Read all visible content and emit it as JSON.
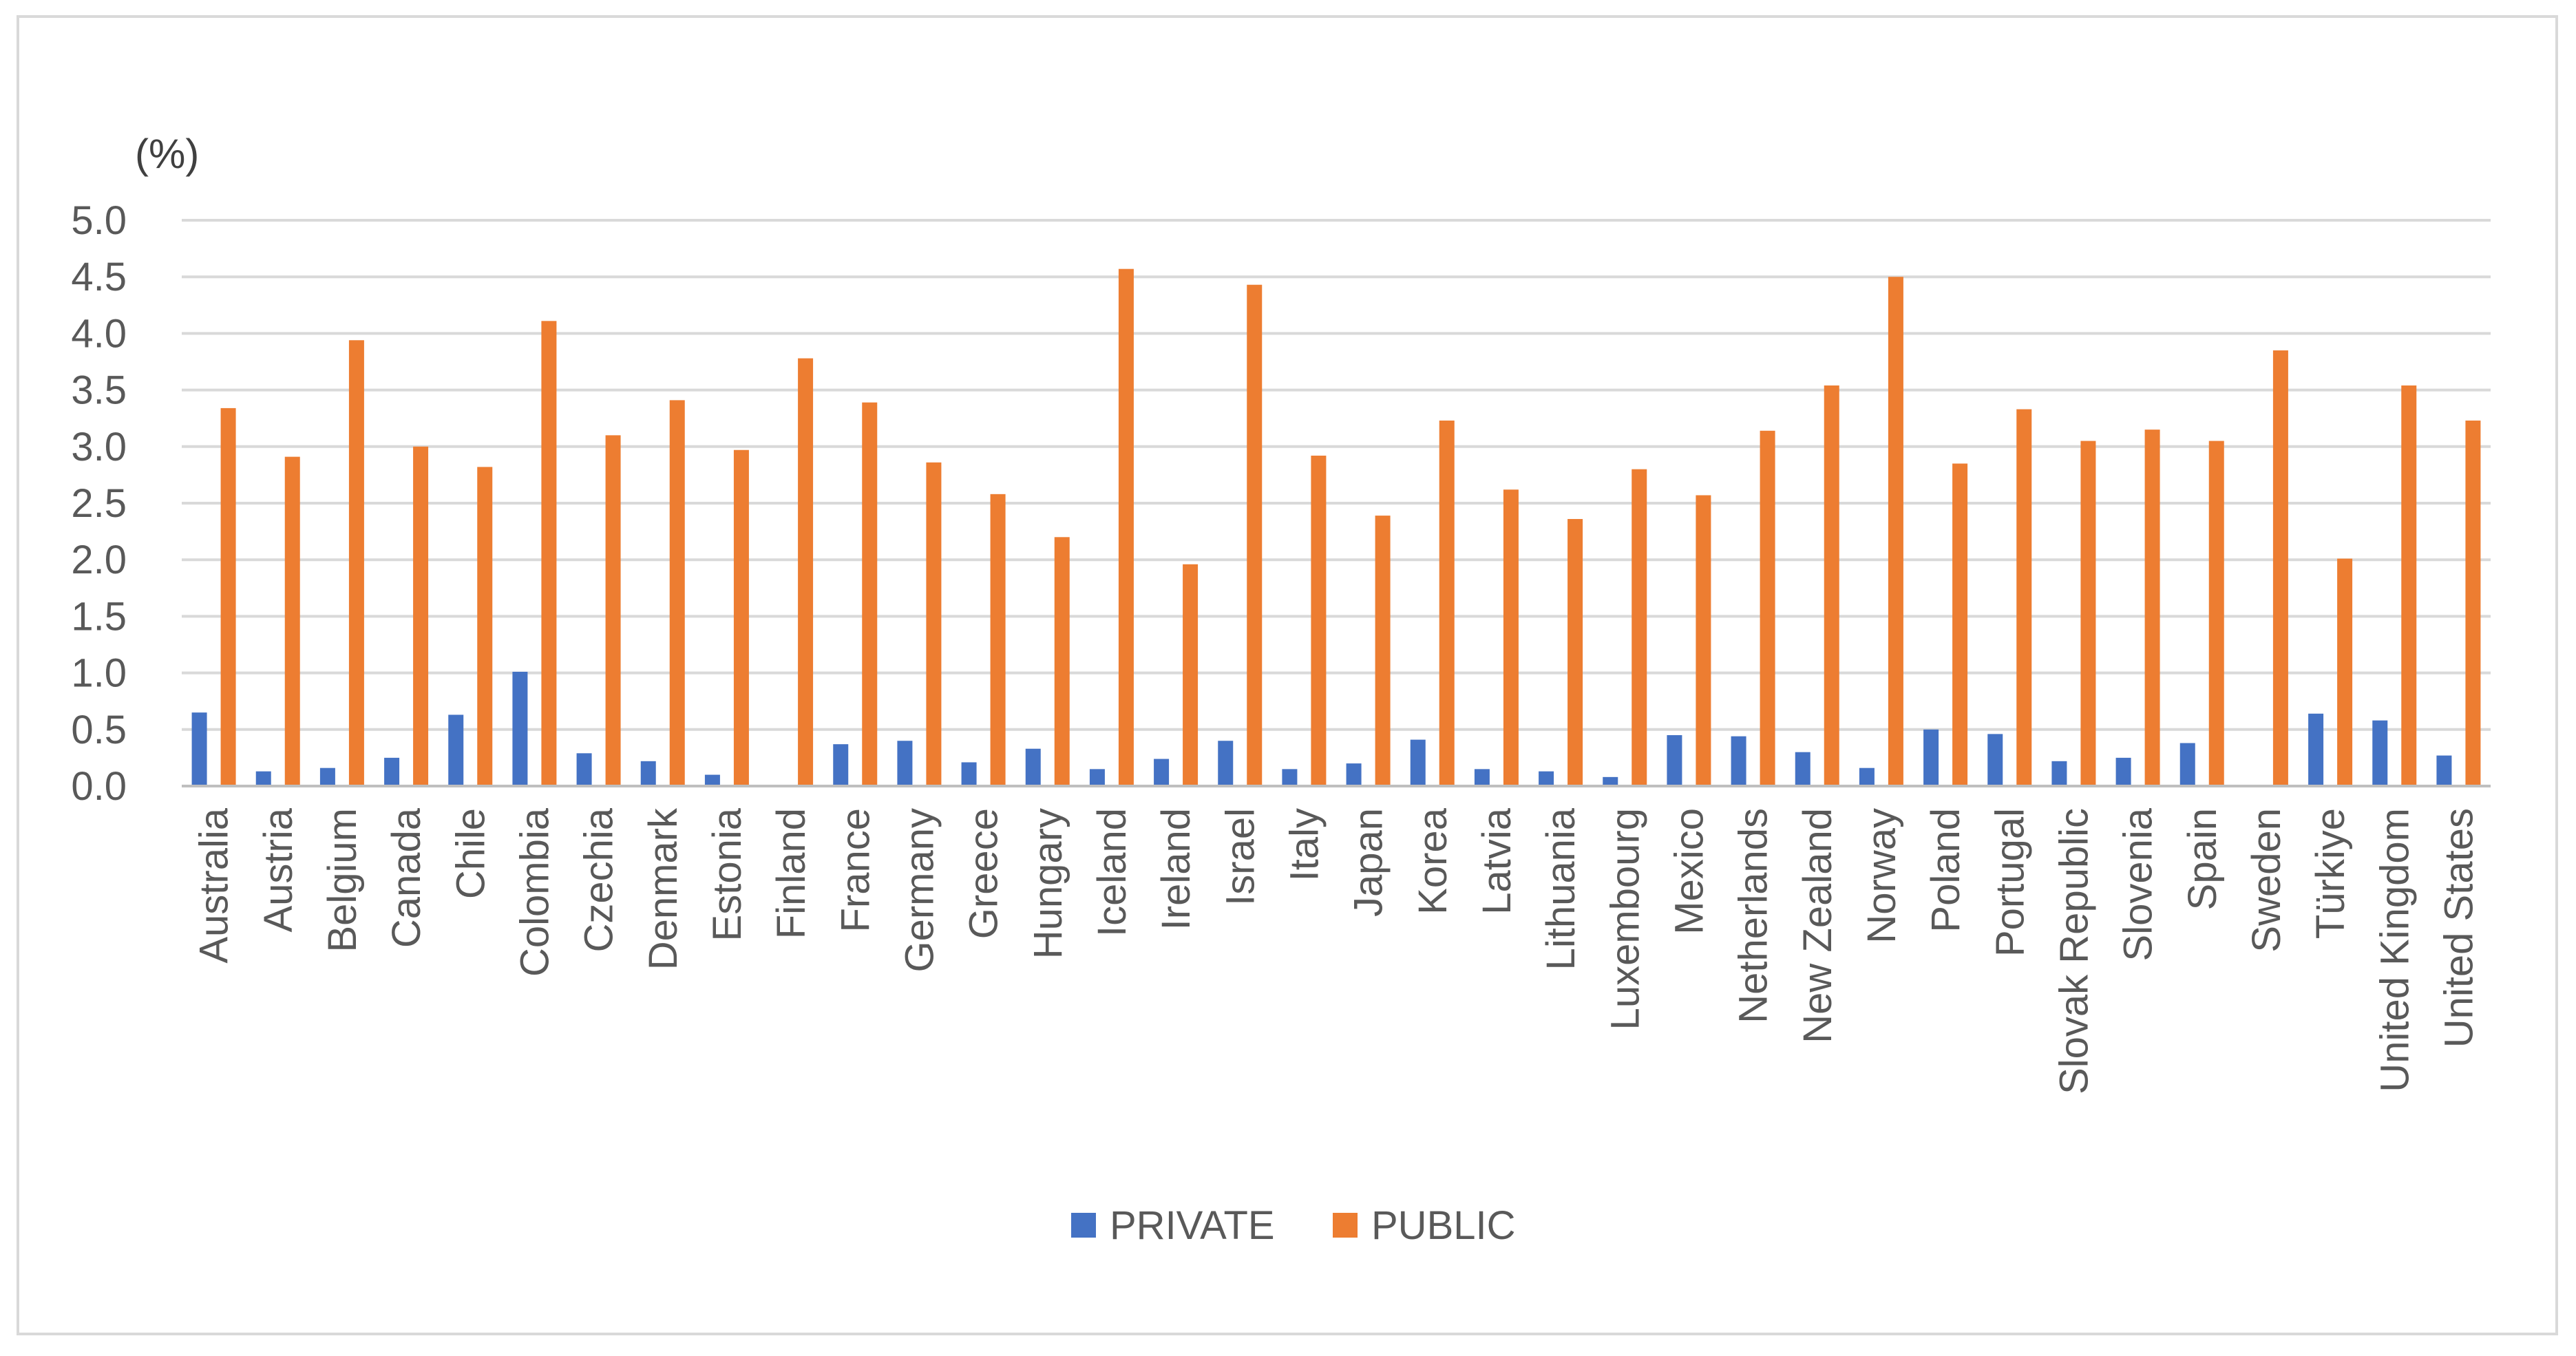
{
  "chart_data": {
    "type": "bar",
    "title": "",
    "xlabel": "",
    "ylabel": "(%)",
    "ylim": [
      0,
      5.0
    ],
    "yticks": [
      "0.0",
      "0.5",
      "1.0",
      "1.5",
      "2.0",
      "2.5",
      "3.0",
      "3.5",
      "4.0",
      "4.5",
      "5.0"
    ],
    "grid": true,
    "legend_position": "bottom",
    "categories": [
      "Australia",
      "Austria",
      "Belgium",
      "Canada",
      "Chile",
      "Colombia",
      "Czechia",
      "Denmark",
      "Estonia",
      "Finland",
      "France",
      "Germany",
      "Greece",
      "Hungary",
      "Iceland",
      "Ireland",
      "Israel",
      "Italy",
      "Japan",
      "Korea",
      "Latvia",
      "Lithuania",
      "Luxembourg",
      "Mexico",
      "Netherlands",
      "New Zealand",
      "Norway",
      "Poland",
      "Portugal",
      "Slovak Republic",
      "Slovenia",
      "Spain",
      "Sweden",
      "Türkiye",
      "United Kingdom",
      "United States"
    ],
    "series": [
      {
        "name": "PRIVATE",
        "color": "#4472c4",
        "values": [
          0.65,
          0.13,
          0.16,
          0.25,
          0.63,
          1.01,
          0.29,
          0.22,
          0.1,
          0.0,
          0.37,
          0.4,
          0.21,
          0.33,
          0.15,
          0.24,
          0.4,
          0.15,
          0.2,
          0.41,
          0.15,
          0.13,
          0.08,
          0.45,
          0.44,
          0.3,
          0.16,
          0.5,
          0.46,
          0.22,
          0.25,
          0.38,
          0.0,
          0.64,
          0.58,
          0.27
        ]
      },
      {
        "name": "PUBLIC",
        "color": "#ed7d31",
        "values": [
          3.34,
          2.91,
          3.94,
          3.0,
          2.82,
          4.11,
          3.1,
          3.41,
          2.97,
          3.78,
          3.39,
          2.86,
          2.58,
          2.2,
          4.57,
          1.96,
          4.43,
          2.92,
          2.39,
          3.23,
          2.62,
          2.36,
          2.8,
          2.57,
          3.14,
          3.54,
          4.5,
          2.85,
          3.33,
          3.05,
          3.15,
          3.05,
          3.85,
          2.01,
          3.54,
          3.23
        ]
      }
    ]
  }
}
